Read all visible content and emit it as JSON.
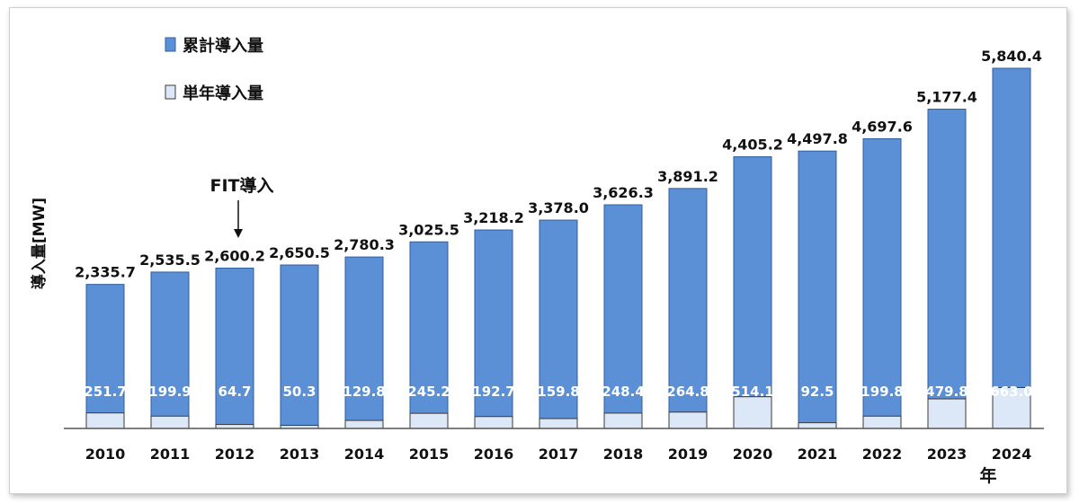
{
  "chart_data": {
    "type": "bar",
    "stacked": true,
    "categories": [
      "2010",
      "2011",
      "2012",
      "2013",
      "2014",
      "2015",
      "2016",
      "2017",
      "2018",
      "2019",
      "2020",
      "2021",
      "2022",
      "2023",
      "2024"
    ],
    "series": [
      {
        "name": "累計導入量",
        "values": [
          2335.7,
          2535.5,
          2600.2,
          2650.5,
          2780.3,
          3025.5,
          3218.2,
          3378.0,
          3626.3,
          3891.2,
          4405.2,
          4497.8,
          4697.6,
          5177.4,
          5840.4
        ],
        "labels": [
          "2,335.7",
          "2,535.5",
          "2,600.2",
          "2,650.5",
          "2,780.3",
          "3,025.5",
          "3,218.2",
          "3,378.0",
          "3,626.3",
          "3,891.2",
          "4,405.2",
          "4,497.8",
          "4,697.6",
          "5,177.4",
          "5,840.4"
        ],
        "color": "#5b8fd6"
      },
      {
        "name": "単年導入量",
        "values": [
          251.7,
          199.9,
          64.7,
          50.3,
          129.8,
          245.2,
          192.7,
          159.8,
          248.4,
          264.8,
          514.1,
          92.5,
          199.8,
          479.8,
          663.0
        ],
        "labels": [
          "251.7",
          "199.9",
          "64.7",
          "50.3",
          "129.8",
          "245.2",
          "192.7",
          "159.8",
          "248.4",
          "264.8",
          "514.1",
          "92.5",
          "199.8",
          "479.8",
          "663.0"
        ],
        "color": "#dce8f7"
      }
    ],
    "ylabel": "導入量[MW]",
    "xlabel": "年",
    "ylim": [
      0,
      6200
    ],
    "grid": false,
    "legend_position": "top-left",
    "annotations": [
      {
        "text": "FIT導入",
        "category": "2012"
      }
    ]
  }
}
